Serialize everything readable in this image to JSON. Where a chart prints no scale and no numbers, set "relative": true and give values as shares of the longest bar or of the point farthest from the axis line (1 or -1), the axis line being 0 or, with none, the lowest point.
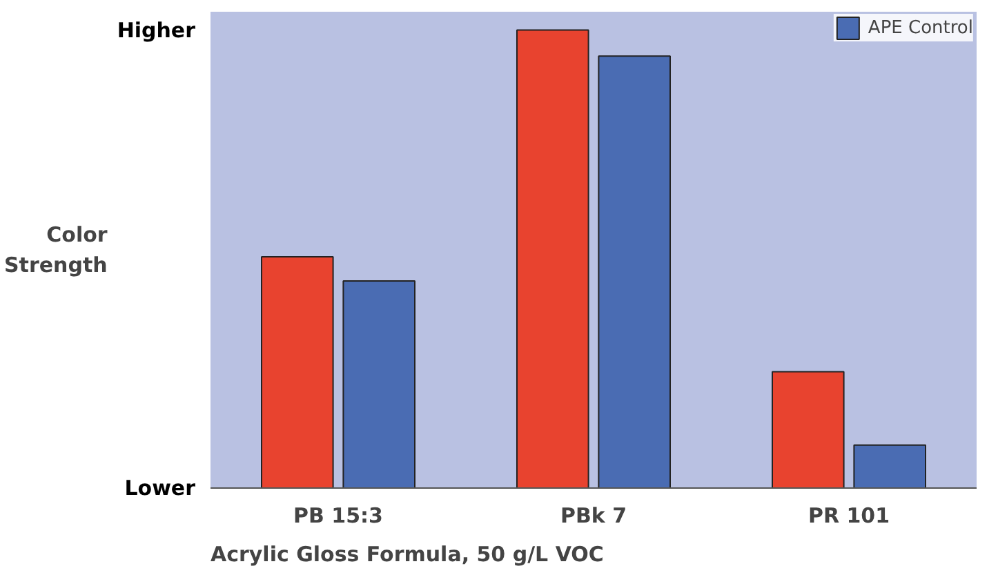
{
  "chart_data": {
    "type": "bar",
    "relative": true,
    "categories": [
      "PB 15:3",
      "PBk 7",
      "PR 101"
    ],
    "series": [
      {
        "color": "#e8432f",
        "values": [
          0.505,
          1,
          0.254
        ]
      },
      {
        "name": "APE Control",
        "color": "#4a6cb3",
        "values": [
          0.452,
          0.943,
          0.094
        ]
      }
    ],
    "ylabel": "Color Strength",
    "legend": "top right",
    "annotations": [
      "Higher",
      "Lower",
      "Acrylic Gloss Formula, 50 g/L VOC"
    ]
  }
}
